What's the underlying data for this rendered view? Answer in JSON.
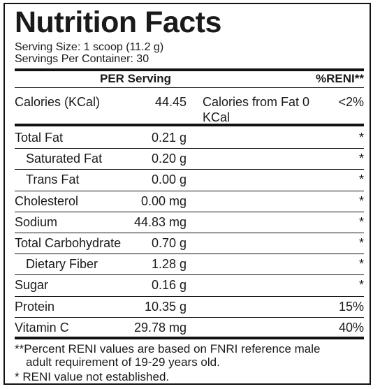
{
  "label": {
    "title": "Nutrition Facts",
    "serving_size": "Serving Size: 1 scoop (11.2 g)",
    "servings_per_container": "Servings Per Container: 30",
    "col_per_serving": "PER Serving",
    "col_reni": "%RENI**",
    "calories": {
      "label": "Calories (KCal)",
      "amount": "44.45",
      "from_fat_label": "Calories from Fat 0 KCal",
      "percent": "<2%"
    },
    "nutrients": [
      {
        "name": "Total Fat",
        "amount": "0.21 g",
        "percent": "*",
        "indent": false
      },
      {
        "name": "Saturated Fat",
        "amount": "0.20 g",
        "percent": "*",
        "indent": true
      },
      {
        "name": "Trans Fat",
        "amount": "0.00 g",
        "percent": "*",
        "indent": true
      },
      {
        "name": "Cholesterol",
        "amount": "0.00 mg",
        "percent": "*",
        "indent": false
      },
      {
        "name": "Sodium",
        "amount": "44.83 mg",
        "percent": "*",
        "indent": false
      },
      {
        "name": "Total Carbohydrate",
        "amount": "0.70 g",
        "percent": "*",
        "indent": false
      },
      {
        "name": "Dietary Fiber",
        "amount": "1.28 g",
        "percent": "*",
        "indent": true
      },
      {
        "name": "Sugar",
        "amount": "0.16 g",
        "percent": "*",
        "indent": false
      },
      {
        "name": "Protein",
        "amount": "10.35 g",
        "percent": "15%",
        "indent": false
      },
      {
        "name": "Vitamin C",
        "amount": "29.78 mg",
        "percent": "40%",
        "indent": false
      }
    ],
    "footnote_1": "**Percent RENI values are based on FNRI reference male",
    "footnote_1b": "adult requirement of 19-29 years old.",
    "footnote_2": "* RENI value not established."
  }
}
